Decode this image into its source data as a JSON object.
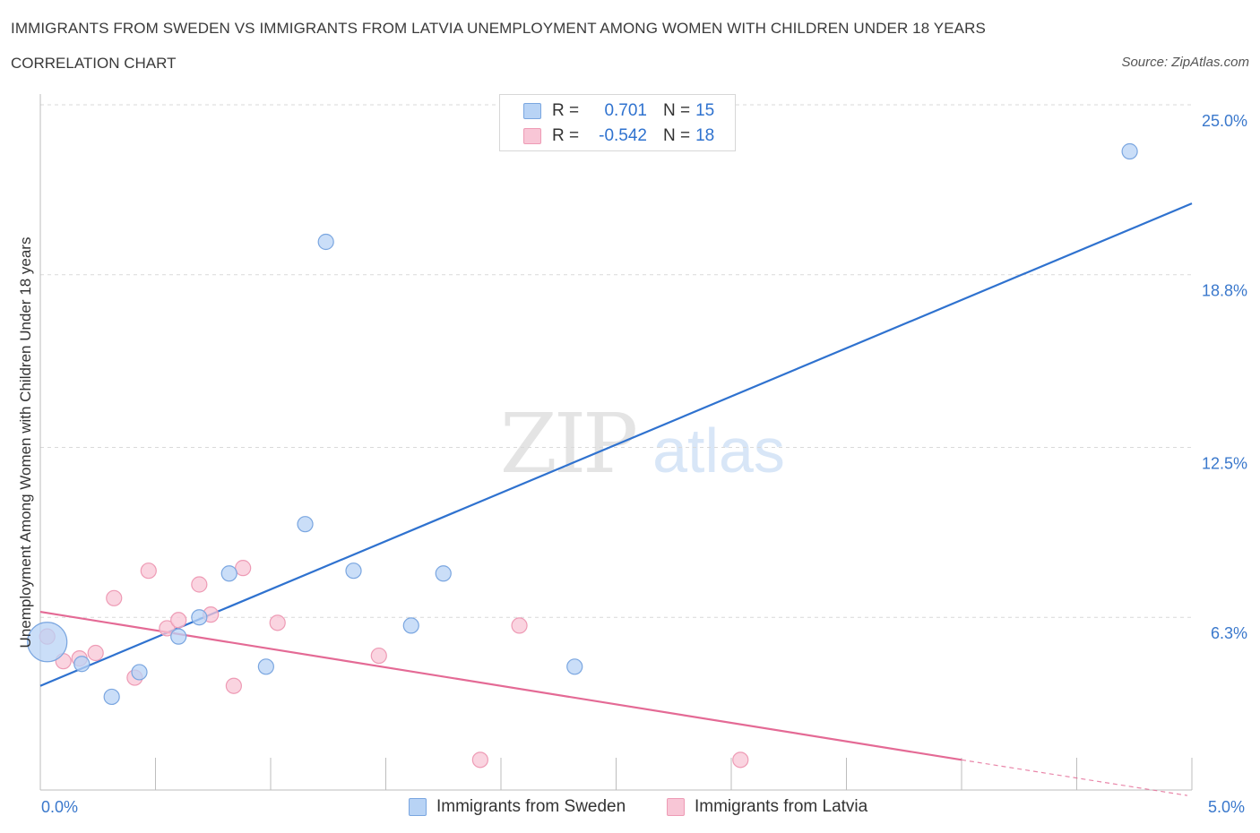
{
  "title": "IMMIGRANTS FROM SWEDEN VS IMMIGRANTS FROM LATVIA UNEMPLOYMENT AMONG WOMEN WITH CHILDREN UNDER 18 YEARS",
  "subtitle": "CORRELATION CHART",
  "source": "Source: ZipAtlas.com",
  "watermark": {
    "zip": "ZIP",
    "atlas": "atlas"
  },
  "legend": {
    "r_label": "R =",
    "n_label": "N =",
    "rows": [
      {
        "r": "0.701",
        "n": "15"
      },
      {
        "r": "-0.542",
        "n": "18"
      }
    ]
  },
  "colors": {
    "sweden_fill": "#b8d3f5",
    "sweden_stroke": "#7aa6e0",
    "sweden_line": "#2f72cf",
    "latvia_fill": "#f8c6d6",
    "latvia_stroke": "#ee9bb5",
    "latvia_line": "#e46a95",
    "axis_label": "#3a78cc",
    "grid": "#d9d9d9"
  },
  "chart_data": {
    "type": "scatter",
    "xlabel": "",
    "ylabel": "Unemployment Among Women with Children Under 18 years",
    "xlim": [
      0,
      5
    ],
    "ylim": [
      0,
      25
    ],
    "x_tick_labels": [
      "0.0%",
      "5.0%"
    ],
    "y_ticks": [
      6.3,
      12.5,
      18.8,
      25.0
    ],
    "y_tick_labels": [
      "6.3%",
      "12.5%",
      "18.8%",
      "25.0%"
    ],
    "series": [
      {
        "name": "Immigrants from Sweden",
        "points": [
          {
            "x": 0.03,
            "y": 5.4,
            "big": true
          },
          {
            "x": 0.18,
            "y": 4.6
          },
          {
            "x": 0.31,
            "y": 3.4
          },
          {
            "x": 0.43,
            "y": 4.3
          },
          {
            "x": 0.6,
            "y": 5.6
          },
          {
            "x": 0.69,
            "y": 6.3
          },
          {
            "x": 0.82,
            "y": 7.9
          },
          {
            "x": 0.98,
            "y": 4.5
          },
          {
            "x": 1.15,
            "y": 9.7
          },
          {
            "x": 1.24,
            "y": 20.0
          },
          {
            "x": 1.36,
            "y": 8.0
          },
          {
            "x": 1.61,
            "y": 6.0
          },
          {
            "x": 1.75,
            "y": 7.9
          },
          {
            "x": 2.32,
            "y": 4.5
          },
          {
            "x": 4.73,
            "y": 23.3
          }
        ],
        "trend": {
          "x1": 0.0,
          "y1": 3.8,
          "x2": 5.0,
          "y2": 21.4
        }
      },
      {
        "name": "Immigrants from Latvia",
        "points": [
          {
            "x": 0.03,
            "y": 5.6
          },
          {
            "x": 0.1,
            "y": 4.7
          },
          {
            "x": 0.17,
            "y": 4.8
          },
          {
            "x": 0.24,
            "y": 5.0
          },
          {
            "x": 0.32,
            "y": 7.0
          },
          {
            "x": 0.41,
            "y": 4.1
          },
          {
            "x": 0.47,
            "y": 8.0
          },
          {
            "x": 0.55,
            "y": 5.9
          },
          {
            "x": 0.6,
            "y": 6.2
          },
          {
            "x": 0.69,
            "y": 7.5
          },
          {
            "x": 0.74,
            "y": 6.4
          },
          {
            "x": 0.84,
            "y": 3.8
          },
          {
            "x": 0.88,
            "y": 8.1
          },
          {
            "x": 1.03,
            "y": 6.1
          },
          {
            "x": 1.47,
            "y": 4.9
          },
          {
            "x": 1.91,
            "y": 1.1
          },
          {
            "x": 2.08,
            "y": 6.0
          },
          {
            "x": 3.04,
            "y": 1.1
          }
        ],
        "trend": {
          "x1": 0.0,
          "y1": 6.5,
          "x2": 4.0,
          "y2": 1.1,
          "dash_to_x": 4.98,
          "dash_to_y": -0.2
        }
      }
    ]
  }
}
